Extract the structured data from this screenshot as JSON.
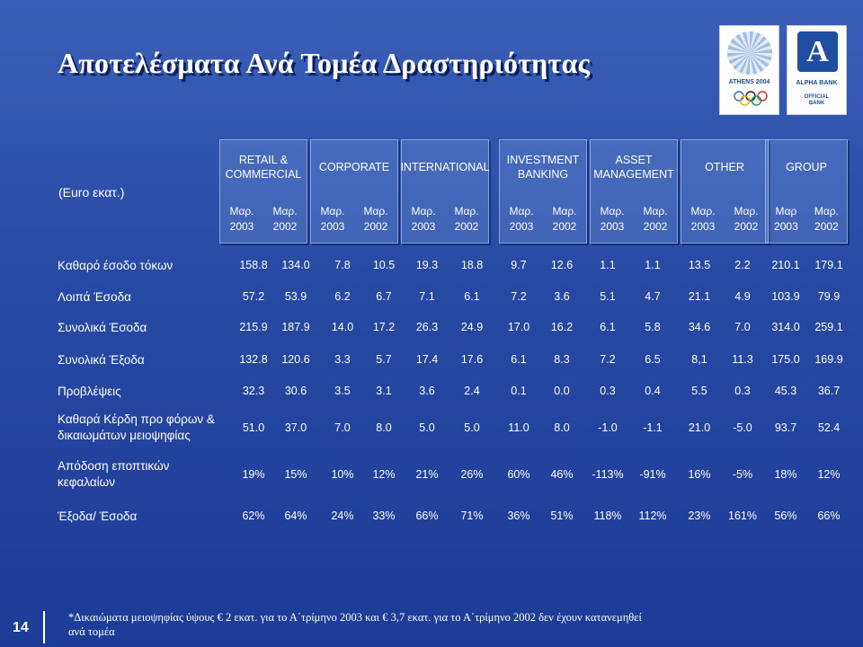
{
  "title": "Αποτελέσματα Ανά Τομέα Δραστηριότητας",
  "units_label": "(Euro εκατ.)",
  "logos": {
    "athens": "ATHENS 2004",
    "alpha_bank": "ALPHA BANK",
    "alpha_official_1": "OFFICIAL",
    "alpha_official_2": "BANK",
    "alpha_mark": "A"
  },
  "segments": [
    {
      "name_line1": "RETAIL &",
      "name_line2": "COMMERCIAL",
      "y1": "Μαρ.\n2003",
      "y2": "Μαρ.\n2002"
    },
    {
      "name_line1": "CORPORATE",
      "name_line2": "",
      "y1": "Μαρ.\n2003",
      "y2": "Μαρ.\n2002"
    },
    {
      "name_line1": "INTERNATIONAL",
      "name_line2": "",
      "y1": "Μαρ.\n2003",
      "y2": "Μαρ.\n2002"
    },
    {
      "name_line1": "INVESTMENT",
      "name_line2": "BANKING",
      "y1": "Μαρ.\n2003",
      "y2": "Μαρ.\n2002"
    },
    {
      "name_line1": "ASSET",
      "name_line2": "MANAGEMENT",
      "y1": "Μαρ.\n2003",
      "y2": "Μαρ.\n2002"
    },
    {
      "name_line1": "OTHER",
      "name_line2": "",
      "y1": "Μαρ.\n2003",
      "y2": "Μαρ.\n2002"
    },
    {
      "name_line1": "GROUP",
      "name_line2": "",
      "y1": "Μαρ\n2003",
      "y2": "Μαρ.\n2002"
    }
  ],
  "rows": [
    {
      "label": "Καθαρό έσοδο τόκων",
      "values": [
        "158.8",
        "134.0",
        "7.8",
        "10.5",
        "19.3",
        "18.8",
        "9.7",
        "12.6",
        "1.1",
        "1.1",
        "13.5",
        "2.2",
        "210.1",
        "179.1"
      ]
    },
    {
      "label": "Λοιπά  Έσοδα",
      "values": [
        "57.2",
        "53.9",
        "6.2",
        "6.7",
        "7.1",
        "6.1",
        "7.2",
        "3.6",
        "5.1",
        "4.7",
        "21.1",
        "4.9",
        "103.9",
        "79.9"
      ]
    },
    {
      "label": "Συνολικά Έσοδα",
      "values": [
        "215.9",
        "187.9",
        "14.0",
        "17.2",
        "26.3",
        "24.9",
        "17.0",
        "16.2",
        "6.1",
        "5.8",
        "34.6",
        "7.0",
        "314.0",
        "259.1"
      ]
    },
    {
      "label": "Συνολικά Έξοδα",
      "values": [
        "132.8",
        "120.6",
        "3.3",
        "5.7",
        "17.4",
        "17.6",
        "6.1",
        "8.3",
        "7.2",
        "6.5",
        "8,1",
        "11.3",
        "175.0",
        "169.9"
      ]
    },
    {
      "label": "Προβλέψεις",
      "values": [
        "32.3",
        "30.6",
        "3.5",
        "3.1",
        "3.6",
        "2.4",
        "0.1",
        "0.0",
        "0.3",
        "0.4",
        "5.5",
        "0.3",
        "45.3",
        "36.7"
      ]
    },
    {
      "label": "Καθαρά Κέρδη προ φόρων &\nδικαιωμάτων μειοψηφίας",
      "values": [
        "51.0",
        "37.0",
        "7.0",
        "8.0",
        "5.0",
        "5.0",
        "11.0",
        "8.0",
        "-1.0",
        "-1.1",
        "21.0",
        "-5.0",
        "93.7",
        "52.4"
      ]
    },
    {
      "label": "Απόδοση εποπτικών\nκεφαλαίων",
      "values": [
        "19%",
        "15%",
        "10%",
        "12%",
        "21%",
        "26%",
        "60%",
        "46%",
        "-113%",
        "-91%",
        "16%",
        "-5%",
        "18%",
        "12%"
      ]
    },
    {
      "label": "Έξοδα/ Έσοδα",
      "values": [
        "62%",
        "64%",
        "24%",
        "33%",
        "66%",
        "71%",
        "36%",
        "51%",
        "118%",
        "112%",
        "23%",
        "161%",
        "56%",
        "66%"
      ]
    }
  ],
  "footnote": "*Δικαιώματα μειοψηφίας ύψους € 2 εκατ. για το Α΄τρίμηνο 2003 και € 3,7 εκατ. για το Α΄τρίμηνο 2002 δεν έχουν κατανεμηθεί ανά τομέα",
  "page_number": "14"
}
